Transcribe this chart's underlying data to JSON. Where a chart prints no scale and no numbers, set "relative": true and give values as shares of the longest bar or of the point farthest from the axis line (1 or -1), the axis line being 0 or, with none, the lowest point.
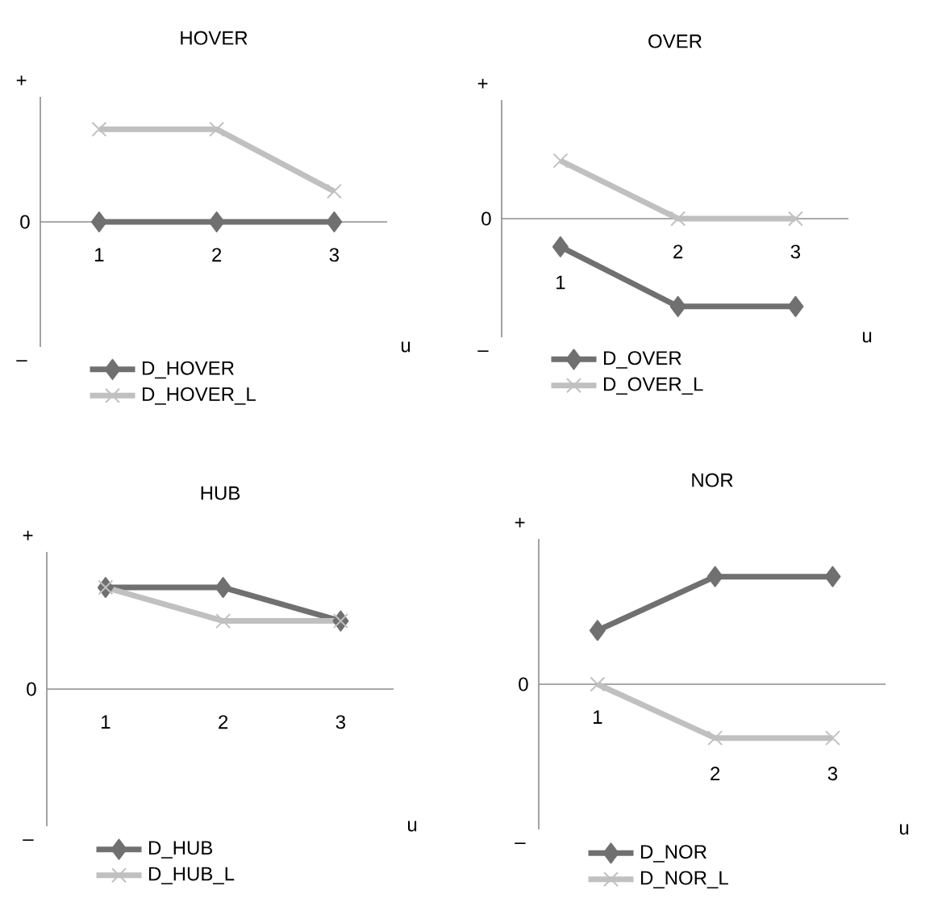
{
  "chart_data": [
    {
      "type": "line",
      "title": "HOVER",
      "xlabel": "u",
      "categories": [
        "1",
        "2",
        "3"
      ],
      "relative": true,
      "legend": "bottom",
      "annotations": [
        "+",
        "0",
        "–"
      ],
      "series": [
        {
          "name": "D_HOVER",
          "color": "#707070",
          "marker": "diamond",
          "values": [
            0,
            0,
            0
          ]
        },
        {
          "name": "D_HOVER_L",
          "color": "#c0c0c0",
          "marker": "cross",
          "values": [
            1,
            1,
            0.33
          ]
        }
      ]
    },
    {
      "type": "line",
      "title": "OVER",
      "xlabel": "u",
      "categories": [
        "1",
        "2",
        "3"
      ],
      "relative": true,
      "legend": "bottom",
      "annotations": [
        "+",
        "0",
        "–"
      ],
      "series": [
        {
          "name": "D_OVER",
          "color": "#707070",
          "marker": "diamond",
          "values": [
            -0.32,
            -1,
            -1
          ]
        },
        {
          "name": "D_OVER_L",
          "color": "#c0c0c0",
          "marker": "cross",
          "values": [
            0.66,
            0,
            0
          ]
        }
      ]
    },
    {
      "type": "line",
      "title": "HUB",
      "xlabel": "u",
      "categories": [
        "1",
        "2",
        "3"
      ],
      "relative": true,
      "legend": "bottom",
      "annotations": [
        "+",
        "0",
        "–"
      ],
      "series": [
        {
          "name": "D_HUB",
          "color": "#707070",
          "marker": "diamond",
          "values": [
            1,
            1,
            0.67
          ]
        },
        {
          "name": "D_HUB_L",
          "color": "#c0c0c0",
          "marker": "cross",
          "values": [
            1,
            0.67,
            0.67
          ]
        }
      ]
    },
    {
      "type": "line",
      "title": "NOR",
      "xlabel": "u",
      "categories": [
        "1",
        "2",
        "3"
      ],
      "relative": true,
      "legend": "bottom",
      "annotations": [
        "+",
        "0",
        "–"
      ],
      "series": [
        {
          "name": "D_NOR",
          "color": "#707070",
          "marker": "diamond",
          "values": [
            0.5,
            1,
            1
          ]
        },
        {
          "name": "D_NOR_L",
          "color": "#c0c0c0",
          "marker": "cross",
          "values": [
            0,
            -0.5,
            -0.5
          ]
        }
      ]
    }
  ]
}
